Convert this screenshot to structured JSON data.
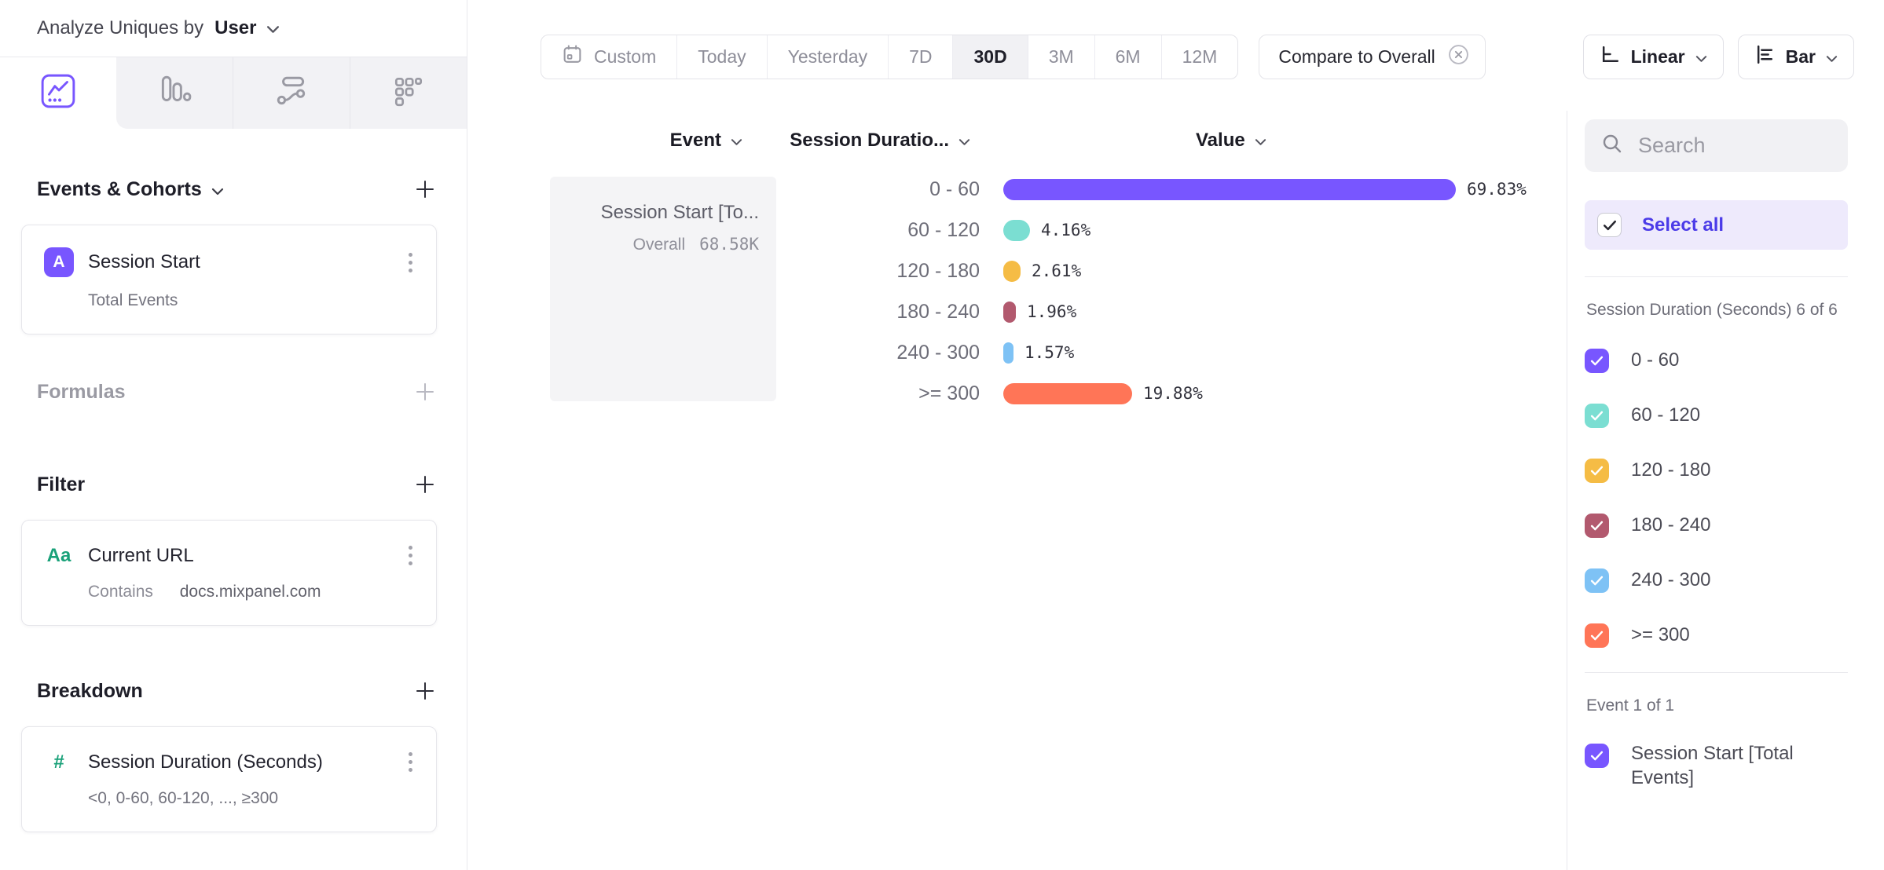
{
  "header": {
    "label": "Analyze Uniques by",
    "value": "User"
  },
  "left_panel": {
    "tabs": [
      {
        "icon": "insights-chart-icon",
        "selected": true
      },
      {
        "icon": "funnel-bars-icon",
        "selected": false
      },
      {
        "icon": "flows-icon",
        "selected": false
      },
      {
        "icon": "retention-grid-icon",
        "selected": false
      }
    ],
    "events_section": {
      "title": "Events & Cohorts",
      "item": {
        "badge": "A",
        "title": "Session Start",
        "subtitle": "Total Events"
      }
    },
    "formulas_section": {
      "title": "Formulas"
    },
    "filter_section": {
      "title": "Filter",
      "item": {
        "badge": "Aa",
        "title": "Current URL",
        "operator": "Contains",
        "value": "docs.mixpanel.com"
      }
    },
    "breakdown_section": {
      "title": "Breakdown",
      "item": {
        "badge": "#",
        "title": "Session Duration (Seconds)",
        "subtitle": "<0, 0-60, 60-120, ..., ≥300"
      }
    }
  },
  "toolbar": {
    "date_ranges": [
      "Custom",
      "Today",
      "Yesterday",
      "7D",
      "30D",
      "3M",
      "6M",
      "12M"
    ],
    "selected_range": "30D",
    "compare_label": "Compare to Overall",
    "scale_label": "Linear",
    "chart_type_label": "Bar"
  },
  "chart": {
    "columns": {
      "event": "Event",
      "breakdown": "Session Duratio...",
      "value": "Value"
    },
    "event_cell": {
      "title": "Session Start [To...",
      "overall_label": "Overall",
      "overall_value": "68.58K"
    }
  },
  "chart_data": {
    "type": "bar",
    "orientation": "horizontal",
    "categories": [
      "0 - 60",
      "60 - 120",
      "120 - 180",
      "180 - 240",
      "240 - 300",
      ">= 300"
    ],
    "values": [
      69.83,
      4.16,
      2.61,
      1.96,
      1.57,
      19.88
    ],
    "value_labels": [
      "69.83%",
      "4.16%",
      "2.61%",
      "1.96%",
      "1.57%",
      "19.88%"
    ],
    "unit": "%",
    "colors": [
      "#7856FF",
      "#7BDED2",
      "#F5BC45",
      "#B2596E",
      "#7EC2F5",
      "#FF7557"
    ],
    "series": [
      {
        "name": "Session Start [Total Events]",
        "overall": "68.58K"
      }
    ],
    "axis_labels_hidden": true,
    "grid": false,
    "legend_position": "right-panel"
  },
  "sidebar": {
    "search_placeholder": "Search",
    "select_all_label": "Select all",
    "breakdown_group": {
      "label": "Session Duration (Seconds) 6 of 6",
      "items": [
        {
          "label": "0 - 60",
          "color": "#7856FF",
          "checked": true
        },
        {
          "label": "60 - 120",
          "color": "#7BDED2",
          "checked": true
        },
        {
          "label": "120 - 180",
          "color": "#F5BC45",
          "checked": true
        },
        {
          "label": "180 - 240",
          "color": "#B2596E",
          "checked": true
        },
        {
          "label": "240 - 300",
          "color": "#7EC2F5",
          "checked": true
        },
        {
          "label": ">= 300",
          "color": "#FF7557",
          "checked": true
        }
      ]
    },
    "event_group": {
      "label": "Event 1 of 1",
      "items": [
        {
          "label": "Session Start [Total Events]",
          "color": "#7856FF",
          "checked": true
        }
      ]
    }
  }
}
